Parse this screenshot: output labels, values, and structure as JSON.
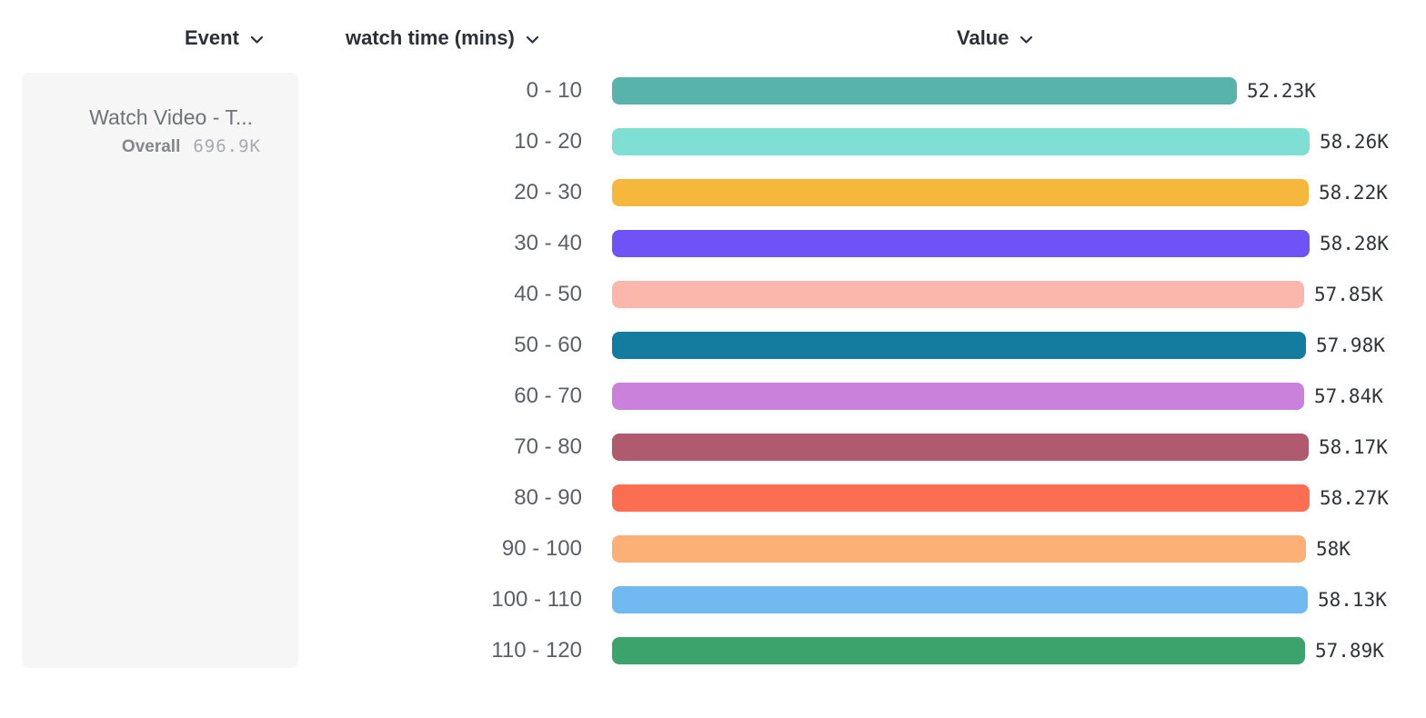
{
  "header": {
    "event_label": "Event",
    "breakdown_label": "watch time (mins)",
    "value_label": "Value"
  },
  "event_card": {
    "title": "Watch Video - T...",
    "overall_label": "Overall",
    "overall_value": "696.9K"
  },
  "chart_data": {
    "type": "bar",
    "orientation": "horizontal",
    "title": "",
    "xlabel": "Value",
    "ylabel": "watch time (mins)",
    "xlim": [
      0,
      58280
    ],
    "grid": false,
    "categories": [
      "0 - 10",
      "10 - 20",
      "20 - 30",
      "30 - 40",
      "40 - 50",
      "50 - 60",
      "60 - 70",
      "70 - 80",
      "80 - 90",
      "90 - 100",
      "100 - 110",
      "110 - 120"
    ],
    "values": [
      52230,
      58260,
      58220,
      58280,
      57850,
      57980,
      57840,
      58170,
      58270,
      58000,
      58130,
      57890
    ],
    "value_labels": [
      "52.23K",
      "58.26K",
      "58.22K",
      "58.28K",
      "57.85K",
      "57.98K",
      "57.84K",
      "58.17K",
      "58.27K",
      "58K",
      "58.13K",
      "57.89K"
    ],
    "colors": [
      "#58b3ad",
      "#7fdfd4",
      "#f5b83d",
      "#6f53f7",
      "#fbb7ab",
      "#147d9f",
      "#c981dc",
      "#b05a70",
      "#fb6e51",
      "#fcb076",
      "#70baf1",
      "#3ca36d"
    ]
  },
  "colors": {
    "header_text": "#2b2f38",
    "category_text": "#5c6065",
    "value_text": "#303338",
    "card_background": "#f6f6f6"
  }
}
